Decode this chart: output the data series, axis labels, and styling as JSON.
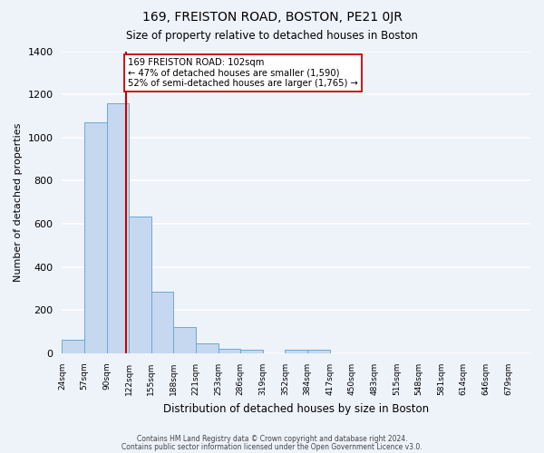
{
  "title": "169, FREISTON ROAD, BOSTON, PE21 0JR",
  "subtitle": "Size of property relative to detached houses in Boston",
  "xlabel": "Distribution of detached houses by size in Boston",
  "ylabel": "Number of detached properties",
  "bar_values": [
    65,
    1070,
    1160,
    635,
    285,
    120,
    45,
    20,
    15,
    0,
    15,
    15,
    0,
    0,
    0,
    0,
    0,
    0,
    0,
    0
  ],
  "tick_labels": [
    "24sqm",
    "57sqm",
    "90sqm",
    "122sqm",
    "155sqm",
    "188sqm",
    "221sqm",
    "253sqm",
    "286sqm",
    "319sqm",
    "352sqm",
    "384sqm",
    "417sqm",
    "450sqm",
    "483sqm",
    "515sqm",
    "548sqm",
    "581sqm",
    "614sqm",
    "646sqm",
    "679sqm"
  ],
  "bar_color": "#c5d8f0",
  "bar_edge_color": "#6aaad4",
  "vline_color": "#cc0000",
  "vline_bin_index": 2.36,
  "annotation_text": "169 FREISTON ROAD: 102sqm\n← 47% of detached houses are smaller (1,590)\n52% of semi-detached houses are larger (1,765) →",
  "annotation_box_facecolor": "#ffffff",
  "annotation_box_edgecolor": "#cc0000",
  "ylim": [
    0,
    1400
  ],
  "yticks": [
    0,
    200,
    400,
    600,
    800,
    1000,
    1200,
    1400
  ],
  "bg_color": "#eef2f9",
  "grid_color": "#ffffff",
  "footer_line1": "Contains HM Land Registry data © Crown copyright and database right 2024.",
  "footer_line2": "Contains public sector information licensed under the Open Government Licence v3.0."
}
